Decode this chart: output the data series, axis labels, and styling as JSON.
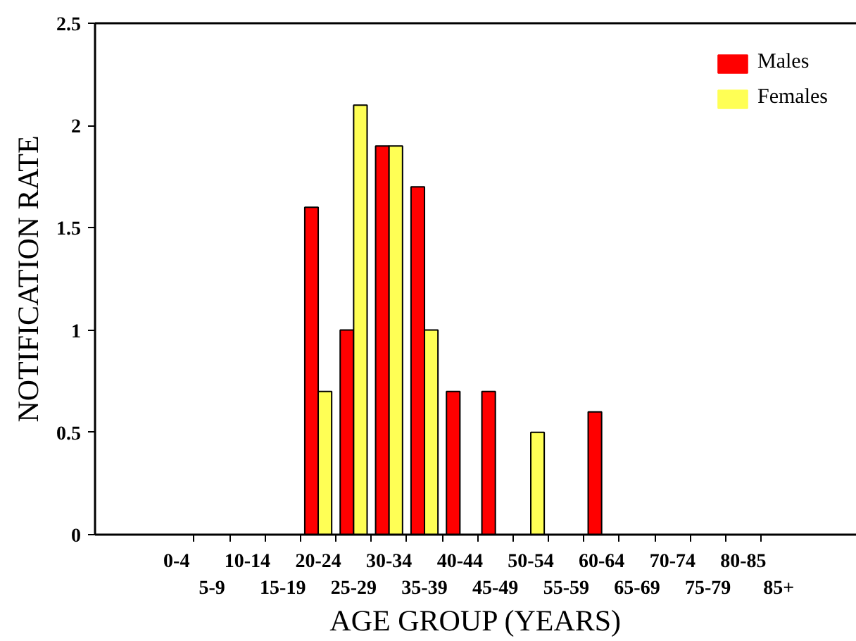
{
  "chart_data": {
    "type": "bar",
    "xlabel": "AGE GROUP (YEARS)",
    "ylabel": "NOTIFICATION RATE",
    "categories": [
      "0-4",
      "5-9",
      "10-14",
      "15-19",
      "20-24",
      "25-29",
      "30-34",
      "35-39",
      "40-44",
      "45-49",
      "50-54",
      "55-59",
      "60-64",
      "65-69",
      "70-74",
      "75-79",
      "80-85",
      "85+"
    ],
    "series": [
      {
        "name": "Males",
        "color": "#ff0000",
        "values": [
          0,
          0,
          0,
          0,
          1.6,
          1.0,
          1.9,
          1.7,
          0.7,
          0.7,
          0,
          0,
          0.6,
          0,
          0,
          0,
          0,
          0
        ]
      },
      {
        "name": "Females",
        "color": "#ffff55",
        "values": [
          0,
          0,
          0,
          0,
          0.7,
          2.1,
          1.9,
          1.0,
          0,
          0,
          0.5,
          0,
          0,
          0,
          0,
          0,
          0,
          0
        ]
      }
    ],
    "ylim": [
      0,
      2.5
    ],
    "yticks": [
      0,
      0.5,
      1,
      1.5,
      2,
      2.5
    ],
    "legend": "top right"
  }
}
